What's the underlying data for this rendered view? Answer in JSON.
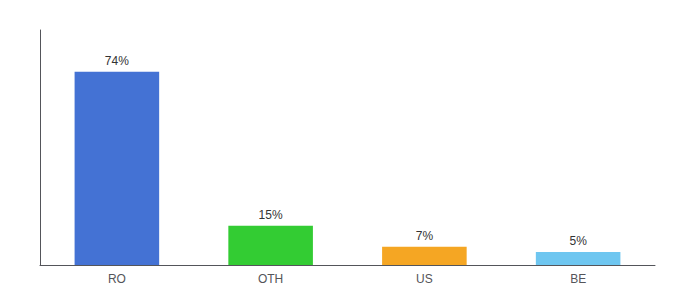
{
  "chart_data": {
    "type": "bar",
    "categories": [
      "RO",
      "OTH",
      "US",
      "BE"
    ],
    "values": [
      74,
      15,
      7,
      5
    ],
    "value_labels": [
      "74%",
      "15%",
      "7%",
      "5%"
    ],
    "colors": [
      "#4472d4",
      "#33cc33",
      "#f5a623",
      "#6ec6f0"
    ],
    "ylim": [
      0,
      90
    ],
    "grid": false,
    "data_labels": true,
    "tick_labels": "x"
  }
}
